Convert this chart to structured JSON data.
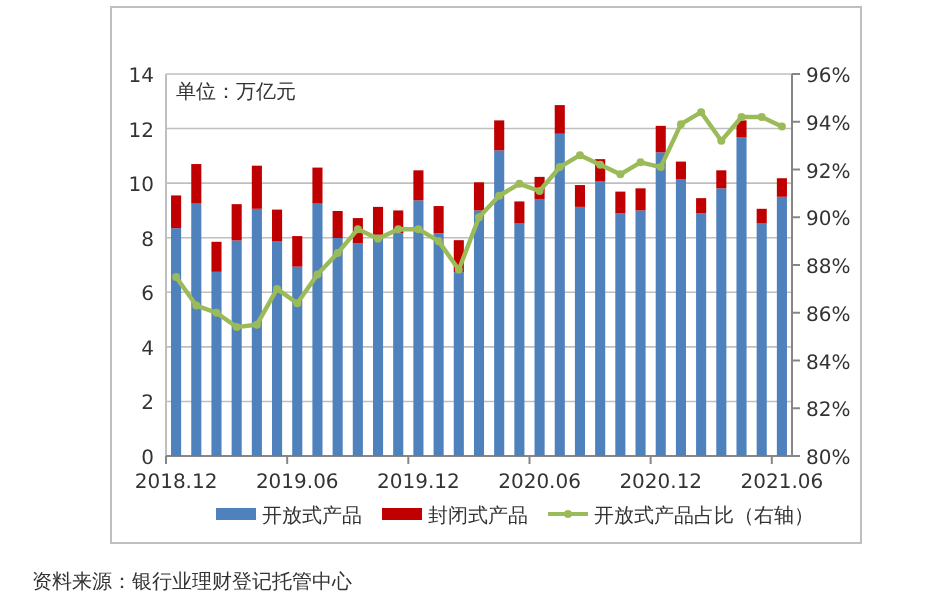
{
  "chart_data": {
    "type": "bar",
    "stacked": true,
    "categories": [
      "2018.12",
      null,
      null,
      null,
      null,
      null,
      "2019.06",
      null,
      null,
      null,
      null,
      null,
      "2019.12",
      null,
      null,
      null,
      null,
      null,
      "2020.06",
      null,
      null,
      null,
      null,
      null,
      "2020.12",
      null,
      null,
      null,
      null,
      null,
      "2021.06"
    ],
    "series": [
      {
        "name": "开放式产品",
        "color": "#4f81bd",
        "values": [
          8.35,
          9.25,
          6.75,
          7.9,
          9.06,
          7.86,
          6.94,
          9.25,
          7.99,
          7.79,
          8.11,
          8.16,
          9.37,
          8.16,
          6.74,
          9.0,
          11.2,
          8.52,
          9.42,
          11.81,
          9.13,
          10.06,
          8.89,
          9.0,
          11.13,
          10.15,
          8.89,
          9.81,
          11.69,
          8.52,
          9.5
        ]
      },
      {
        "name": "封闭式产品",
        "color": "#c00000",
        "values": [
          1.2,
          1.45,
          1.1,
          1.33,
          1.58,
          1.17,
          1.12,
          1.32,
          0.99,
          0.93,
          1.02,
          0.84,
          1.1,
          1.0,
          1.17,
          1.03,
          1.1,
          0.81,
          0.81,
          1.05,
          0.8,
          0.82,
          0.8,
          0.81,
          0.97,
          0.64,
          0.56,
          0.66,
          0.61,
          0.54,
          0.68
        ]
      },
      {
        "name": "开放式产品占比（右轴）",
        "type": "line",
        "axis": "y2",
        "marker": "circle",
        "color": "#9bbb59",
        "values": [
          87.5,
          86.3,
          86.0,
          85.4,
          85.5,
          87.0,
          86.4,
          87.6,
          88.5,
          89.5,
          89.1,
          89.5,
          89.5,
          89.0,
          87.8,
          90.0,
          90.9,
          91.4,
          91.1,
          92.1,
          92.6,
          92.2,
          91.8,
          92.3,
          92.1,
          93.9,
          94.4,
          93.2,
          94.2,
          94.2,
          93.8
        ]
      }
    ],
    "ylim": [
      0,
      14
    ],
    "yticks": [
      0,
      2,
      4,
      6,
      8,
      10,
      12,
      14
    ],
    "y2lim": [
      80,
      96
    ],
    "y2ticks": [
      {
        "value": 80,
        "label": "80%"
      },
      {
        "value": 82,
        "label": "82%"
      },
      {
        "value": 84,
        "label": "84%"
      },
      {
        "value": 86,
        "label": "86%"
      },
      {
        "value": 88,
        "label": "88%"
      },
      {
        "value": 90,
        "label": "90%"
      },
      {
        "value": 92,
        "label": "92%"
      },
      {
        "value": 94,
        "label": "94%"
      },
      {
        "value": 96,
        "label": "96%"
      }
    ],
    "grid": "y",
    "legend": "bottom",
    "annotations": [
      "单位：万亿元",
      "资料来源：银行业理财登记托管中心"
    ]
  }
}
